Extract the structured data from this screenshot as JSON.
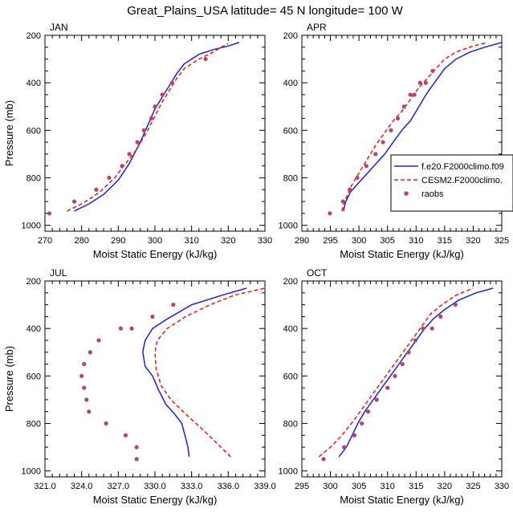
{
  "figure": {
    "title": "Great_Plains_USA  latitude= 45 N longitude= 100 W"
  },
  "colors": {
    "model1": "#1f1fe0",
    "model2": "#e81c1c",
    "raobs": "#b5456b"
  },
  "legend": {
    "entries": [
      "f.e20.F2000climo.f09",
      "CESM2.F2000climo.",
      "raobs"
    ]
  },
  "chart_data": [
    {
      "type": "line",
      "panel": "JAN",
      "title": "JAN",
      "xlabel": "Moist Static Energy (kJ/kg)",
      "ylabel": "Pressure (mb)",
      "xlim": [
        270,
        330
      ],
      "ylim": [
        1025,
        200
      ],
      "xticks": [
        270,
        280,
        290,
        300,
        310,
        320,
        330
      ],
      "xticklabels": [
        "270",
        "280",
        "290",
        "300",
        "310",
        "320",
        "330"
      ],
      "yticks": [
        200,
        400,
        600,
        800,
        1000
      ],
      "yticklabels": [
        "200",
        "400",
        "600",
        "800",
        "1000"
      ],
      "series": [
        {
          "name": "f.e20.F2000climo.f09",
          "style": "solid",
          "x": [
            278,
            282,
            286,
            290,
            293,
            296,
            298,
            300,
            302,
            304,
            306,
            308,
            312,
            316,
            320,
            323
          ],
          "y": [
            940,
            910,
            870,
            810,
            740,
            650,
            580,
            510,
            460,
            410,
            360,
            320,
            280,
            260,
            245,
            230
          ]
        },
        {
          "name": "CESM2.F2000climo.",
          "style": "dashed",
          "x": [
            276,
            280,
            285,
            289,
            292,
            295,
            298,
            300,
            302,
            304,
            306,
            308,
            312,
            316,
            318,
            320
          ],
          "y": [
            940,
            910,
            860,
            800,
            740,
            680,
            600,
            540,
            480,
            430,
            380,
            340,
            300,
            270,
            250,
            235
          ]
        },
        {
          "name": "raobs",
          "style": "markers",
          "x": [
            271.2,
            278,
            284,
            287.5,
            291,
            293,
            295.2,
            297,
            299,
            300,
            302,
            304.7,
            313.8
          ],
          "y": [
            950,
            900,
            850,
            800,
            750,
            700,
            650,
            600,
            550,
            500,
            450,
            400,
            300
          ]
        }
      ]
    },
    {
      "type": "line",
      "panel": "APR",
      "title": "APR",
      "xlabel": "Moist Static Energy (kJ/kg)",
      "ylabel": "Pressure (mb)",
      "xlim": [
        290,
        325
      ],
      "ylim": [
        1025,
        200
      ],
      "xticks": [
        290,
        295,
        300,
        305,
        310,
        315,
        320,
        325
      ],
      "xticklabels": [
        "290",
        "295",
        "300",
        "305",
        "310",
        "315",
        "320",
        "325"
      ],
      "yticks": [
        200,
        400,
        600,
        800,
        1000
      ],
      "yticklabels": [
        "200",
        "400",
        "600",
        "800",
        "1000"
      ],
      "series": [
        {
          "name": "f.e20.F2000climo.f09",
          "style": "solid",
          "x": [
            297.3,
            297.6,
            298.5,
            300,
            301.5,
            303,
            304.5,
            306,
            307.5,
            309,
            310.5,
            312,
            313.5,
            315,
            317,
            319.5,
            322,
            325
          ],
          "y": [
            940,
            905,
            860,
            820,
            780,
            740,
            700,
            650,
            600,
            560,
            500,
            440,
            390,
            340,
            300,
            270,
            250,
            230
          ]
        },
        {
          "name": "CESM2.F2000climo.",
          "style": "dashed",
          "x": [
            297,
            297.5,
            298.5,
            300,
            301.5,
            303,
            304.5,
            306,
            307.5,
            309,
            310.5,
            312,
            313.5,
            315,
            317,
            320,
            322.5
          ],
          "y": [
            940,
            900,
            840,
            780,
            720,
            660,
            610,
            560,
            520,
            470,
            420,
            380,
            340,
            300,
            270,
            245,
            230
          ]
        },
        {
          "name": "raobs",
          "style": "markers",
          "x": [
            294.9,
            297.2,
            298.4,
            299.7,
            301.3,
            302.9,
            304.2,
            305.6,
            306.8,
            307.9,
            309,
            309.7,
            310.7,
            311.7,
            312.9
          ],
          "y": [
            950,
            900,
            850,
            800,
            750,
            700,
            650,
            600,
            550,
            500,
            450,
            450,
            400,
            400,
            350
          ]
        }
      ]
    },
    {
      "type": "line",
      "panel": "JUL",
      "title": "JUL",
      "xlabel": "Moist Static Energy (kJ/kg)",
      "ylabel": "Pressure (mb)",
      "xlim": [
        321,
        339
      ],
      "ylim": [
        1025,
        200
      ],
      "xticks": [
        321,
        324,
        327,
        330,
        333,
        336,
        339
      ],
      "xticklabels": [
        "321.0",
        "324.0",
        "327.0",
        "330.0",
        "333.0",
        "336.0",
        "339.0"
      ],
      "yticks": [
        200,
        400,
        600,
        800,
        1000
      ],
      "yticklabels": [
        "200",
        "400",
        "600",
        "800",
        "1000"
      ],
      "series": [
        {
          "name": "f.e20.F2000climo.f09",
          "style": "solid",
          "x": [
            332.8,
            332.7,
            332.5,
            332.2,
            331.6,
            330.9,
            330.3,
            329.8,
            329.2,
            329.0,
            329.2,
            329.8,
            331.0,
            333.0,
            335.5,
            337.5
          ],
          "y": [
            940,
            900,
            860,
            800,
            760,
            720,
            660,
            600,
            560,
            500,
            450,
            400,
            360,
            300,
            260,
            230
          ]
        },
        {
          "name": "CESM2.F2000climo.",
          "style": "dashed",
          "x": [
            336.2,
            335.0,
            333.8,
            332.5,
            331.3,
            330.5,
            330.1,
            330.0,
            330.2,
            331.0,
            332.5,
            334.5,
            336.5,
            339.0
          ],
          "y": [
            940,
            880,
            820,
            760,
            700,
            640,
            570,
            500,
            450,
            400,
            350,
            300,
            260,
            230
          ]
        },
        {
          "name": "raobs",
          "style": "markers",
          "x": [
            328.5,
            328.5,
            327.6,
            326.0,
            324.6,
            324.4,
            324.2,
            324.0,
            324.2,
            324.7,
            325.4,
            327.2,
            328.1,
            329.8,
            331.5
          ],
          "y": [
            950,
            900,
            850,
            800,
            750,
            700,
            650,
            600,
            550,
            500,
            450,
            400,
            400,
            350,
            300
          ]
        }
      ]
    },
    {
      "type": "line",
      "panel": "OCT",
      "title": "OCT",
      "xlabel": "Moist Static Energy (kJ/kg)",
      "ylabel": "Pressure (mb)",
      "xlim": [
        295,
        330
      ],
      "ylim": [
        1025,
        200
      ],
      "xticks": [
        295,
        300,
        305,
        310,
        315,
        320,
        325,
        330
      ],
      "xticklabels": [
        "295",
        "300",
        "305",
        "310",
        "315",
        "320",
        "325",
        "330"
      ],
      "yticks": [
        200,
        400,
        600,
        800,
        1000
      ],
      "yticklabels": [
        "200",
        "400",
        "600",
        "800",
        "1000"
      ],
      "series": [
        {
          "name": "f.e20.F2000climo.f09",
          "style": "solid",
          "x": [
            301.5,
            302.8,
            303.8,
            304.8,
            306,
            307.5,
            309,
            310.5,
            312,
            313.5,
            315,
            316.5,
            318,
            320,
            322.5,
            325.5,
            328.5
          ],
          "y": [
            940,
            900,
            850,
            800,
            750,
            700,
            650,
            600,
            550,
            500,
            450,
            400,
            360,
            320,
            280,
            250,
            230
          ]
        },
        {
          "name": "CESM2.F2000climo.",
          "style": "dashed",
          "x": [
            298,
            300,
            302,
            304,
            305.5,
            307,
            308.5,
            310,
            311.5,
            313,
            314.5,
            316,
            317.5,
            319.5,
            322,
            325
          ],
          "y": [
            940,
            900,
            850,
            790,
            740,
            690,
            640,
            590,
            540,
            490,
            440,
            390,
            340,
            300,
            260,
            230
          ]
        },
        {
          "name": "raobs",
          "style": "markers",
          "x": [
            298.8,
            302.4,
            304.2,
            305.5,
            306.6,
            308.1,
            310.0,
            311.3,
            312.6,
            313.7,
            314.9,
            316.2,
            317.8,
            319.3,
            321.9
          ],
          "y": [
            950,
            900,
            850,
            800,
            750,
            700,
            650,
            600,
            550,
            500,
            450,
            400,
            400,
            350,
            300
          ]
        }
      ]
    }
  ]
}
